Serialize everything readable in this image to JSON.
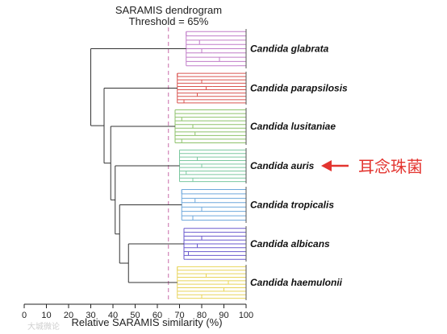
{
  "title": "SARAMIS dendrogram",
  "threshold_label": "Threshold = 65%",
  "threshold_value": 65,
  "xaxis": {
    "label": "Relative SARAMIS similarity (%)",
    "min": 0,
    "max": 100,
    "ticks": [
      "0",
      "10",
      "20",
      "30",
      "40",
      "50",
      "60",
      "70",
      "80",
      "90",
      "100"
    ]
  },
  "clusters": [
    {
      "name": "Candida glabrata",
      "color": "#c07cc8",
      "base": 73,
      "leaves": [
        73,
        76,
        79,
        84,
        80,
        85,
        88,
        92,
        96
      ]
    },
    {
      "name": "Candida parapsilosis",
      "color": "#d9534f",
      "base": 69,
      "leaves": [
        69,
        76,
        80,
        82,
        85,
        82,
        80,
        78,
        75,
        72
      ]
    },
    {
      "name": "Candida lusitaniae",
      "color": "#8dc26a",
      "base": 68,
      "leaves": [
        68,
        72,
        71,
        74,
        76,
        78,
        80,
        77,
        74,
        71
      ]
    },
    {
      "name": "Candida auris",
      "color": "#7cc8a0",
      "base": 70,
      "leaves": [
        70,
        74,
        78,
        82,
        86,
        80,
        77,
        73,
        79,
        76
      ]
    },
    {
      "name": "Candida tropicalis",
      "color": "#6fa8dc",
      "base": 71,
      "leaves": [
        71,
        74,
        77,
        79,
        82,
        80,
        78,
        76
      ]
    },
    {
      "name": "Candida albicans",
      "color": "#6a5acd",
      "base": 72,
      "leaves": [
        72,
        75,
        80,
        84,
        82,
        78,
        76,
        74,
        73
      ]
    },
    {
      "name": "Candida haemulonii",
      "color": "#e8d45a",
      "base": 69,
      "leaves": [
        69,
        76,
        82,
        88,
        92,
        96,
        94,
        90,
        86,
        80
      ]
    }
  ],
  "joins": [
    {
      "similarity": 30,
      "a": "Candida glabrata",
      "b": "rest"
    },
    {
      "similarity": 36,
      "a": "Candida parapsilosis",
      "b": "rest2"
    },
    {
      "similarity": 39,
      "a": "Candida lusitaniae",
      "b": "rest3"
    },
    {
      "similarity": 41,
      "a": "Candida auris",
      "b": "rest4"
    },
    {
      "similarity": 43,
      "a": "Candida tropicalis",
      "b": "rest5"
    },
    {
      "similarity": 47,
      "a": "Candida albicans",
      "b": "Candida haemulonii"
    }
  ],
  "annotation": {
    "text": "耳念珠菌",
    "color": "#e3342f",
    "target": "Candida auris"
  },
  "watermark": "大城微论"
}
